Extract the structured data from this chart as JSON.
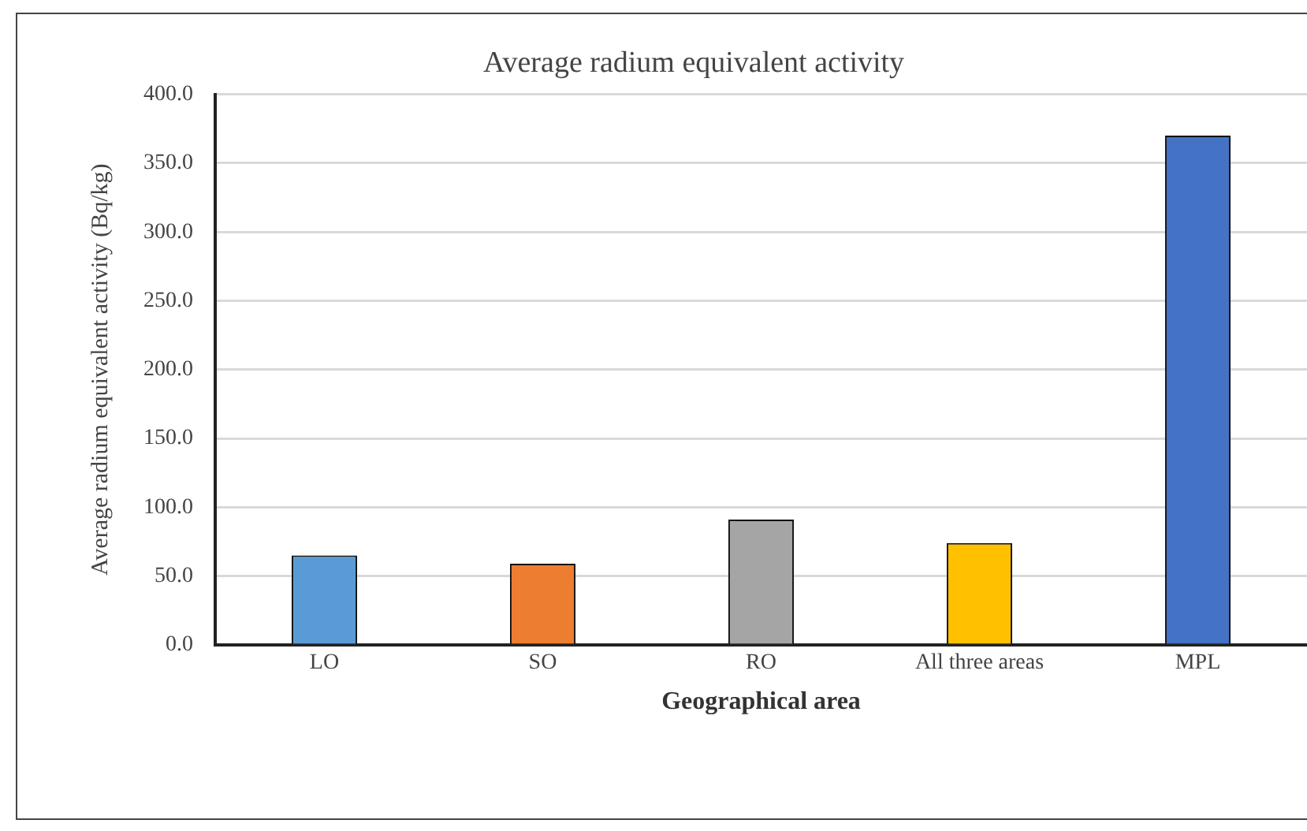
{
  "chart_data": {
    "type": "bar",
    "title": "Average radium equivalent activity",
    "xlabel": "Geographical area",
    "ylabel": "Average radium equivalent activity (Bq/kg)",
    "categories": [
      "LO",
      "SO",
      "RO",
      "All three areas",
      "MPL"
    ],
    "values": [
      65,
      59,
      91,
      74,
      370
    ],
    "colors": [
      "#5b9bd5",
      "#ed7d31",
      "#a5a5a5",
      "#ffc000",
      "#4472c4"
    ],
    "ylim": [
      0,
      400
    ],
    "yticks": [
      {
        "value": 0,
        "label": "0.0"
      },
      {
        "value": 50,
        "label": "50.0"
      },
      {
        "value": 100,
        "label": "100.0"
      },
      {
        "value": 150,
        "label": "150.0"
      },
      {
        "value": 200,
        "label": "200.0"
      },
      {
        "value": 250,
        "label": "250.0"
      },
      {
        "value": 300,
        "label": "300.0"
      },
      {
        "value": 350,
        "label": "350.0"
      },
      {
        "value": 400,
        "label": "400.0"
      }
    ],
    "grid": "y",
    "legend": false
  }
}
